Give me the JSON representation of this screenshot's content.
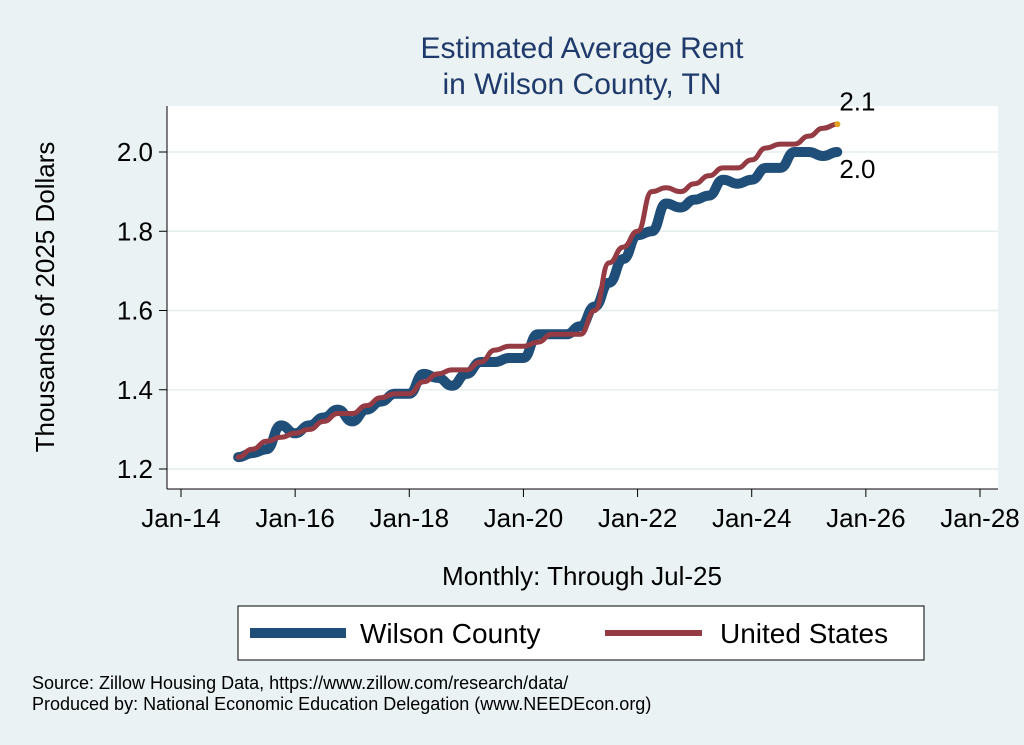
{
  "chart_data": {
    "type": "line",
    "title": [
      "Estimated Average Rent",
      "in Wilson County, TN"
    ],
    "xlabel": "Monthly: Through Jul-25",
    "ylabel": "Thousands of 2025 Dollars",
    "x_ticks": [
      "Jan-14",
      "Jan-16",
      "Jan-18",
      "Jan-20",
      "Jan-22",
      "Jan-24",
      "Jan-26",
      "Jan-28"
    ],
    "y_ticks": [
      "1.2",
      "1.4",
      "1.6",
      "1.8",
      "2.0"
    ],
    "xlim": [
      "2014-01",
      "2028-01"
    ],
    "ylim": [
      1.2,
      2.1
    ],
    "grid": true,
    "legend_position": "bottom",
    "series": [
      {
        "name": "Wilson County",
        "color": "#1f4e79",
        "end_label": "2.0",
        "points": [
          [
            "2015-01",
            1.23
          ],
          [
            "2015-04",
            1.24
          ],
          [
            "2015-07",
            1.25
          ],
          [
            "2015-10",
            1.31
          ],
          [
            "2016-01",
            1.29
          ],
          [
            "2016-04",
            1.31
          ],
          [
            "2016-07",
            1.33
          ],
          [
            "2016-10",
            1.35
          ],
          [
            "2017-01",
            1.32
          ],
          [
            "2017-04",
            1.35
          ],
          [
            "2017-07",
            1.37
          ],
          [
            "2017-10",
            1.39
          ],
          [
            "2018-01",
            1.39
          ],
          [
            "2018-04",
            1.44
          ],
          [
            "2018-07",
            1.43
          ],
          [
            "2018-10",
            1.41
          ],
          [
            "2019-01",
            1.44
          ],
          [
            "2019-04",
            1.47
          ],
          [
            "2019-07",
            1.47
          ],
          [
            "2019-10",
            1.48
          ],
          [
            "2020-01",
            1.48
          ],
          [
            "2020-04",
            1.54
          ],
          [
            "2020-07",
            1.54
          ],
          [
            "2020-10",
            1.54
          ],
          [
            "2021-01",
            1.56
          ],
          [
            "2021-04",
            1.61
          ],
          [
            "2021-07",
            1.67
          ],
          [
            "2021-10",
            1.73
          ],
          [
            "2022-01",
            1.79
          ],
          [
            "2022-04",
            1.8
          ],
          [
            "2022-07",
            1.87
          ],
          [
            "2022-10",
            1.86
          ],
          [
            "2023-01",
            1.88
          ],
          [
            "2023-04",
            1.89
          ],
          [
            "2023-07",
            1.93
          ],
          [
            "2023-10",
            1.92
          ],
          [
            "2024-01",
            1.93
          ],
          [
            "2024-04",
            1.96
          ],
          [
            "2024-07",
            1.96
          ],
          [
            "2024-10",
            2.0
          ],
          [
            "2025-01",
            2.0
          ],
          [
            "2025-04",
            1.99
          ],
          [
            "2025-07",
            2.0
          ]
        ]
      },
      {
        "name": "United States",
        "color": "#943b44",
        "end_label": "2.1",
        "points": [
          [
            "2015-01",
            1.23
          ],
          [
            "2015-04",
            1.25
          ],
          [
            "2015-07",
            1.27
          ],
          [
            "2015-10",
            1.28
          ],
          [
            "2016-01",
            1.29
          ],
          [
            "2016-04",
            1.3
          ],
          [
            "2016-07",
            1.32
          ],
          [
            "2016-10",
            1.34
          ],
          [
            "2017-01",
            1.34
          ],
          [
            "2017-04",
            1.36
          ],
          [
            "2017-07",
            1.38
          ],
          [
            "2017-10",
            1.39
          ],
          [
            "2018-01",
            1.39
          ],
          [
            "2018-04",
            1.42
          ],
          [
            "2018-07",
            1.44
          ],
          [
            "2018-10",
            1.45
          ],
          [
            "2019-01",
            1.45
          ],
          [
            "2019-04",
            1.47
          ],
          [
            "2019-07",
            1.5
          ],
          [
            "2019-10",
            1.51
          ],
          [
            "2020-01",
            1.51
          ],
          [
            "2020-04",
            1.52
          ],
          [
            "2020-07",
            1.54
          ],
          [
            "2020-10",
            1.54
          ],
          [
            "2021-01",
            1.54
          ],
          [
            "2021-04",
            1.6
          ],
          [
            "2021-07",
            1.72
          ],
          [
            "2021-10",
            1.76
          ],
          [
            "2022-01",
            1.8
          ],
          [
            "2022-04",
            1.9
          ],
          [
            "2022-07",
            1.91
          ],
          [
            "2022-10",
            1.9
          ],
          [
            "2023-01",
            1.92
          ],
          [
            "2023-04",
            1.94
          ],
          [
            "2023-07",
            1.96
          ],
          [
            "2023-10",
            1.96
          ],
          [
            "2024-01",
            1.98
          ],
          [
            "2024-04",
            2.01
          ],
          [
            "2024-07",
            2.02
          ],
          [
            "2024-10",
            2.02
          ],
          [
            "2025-01",
            2.04
          ],
          [
            "2025-04",
            2.06
          ],
          [
            "2025-07",
            2.07
          ]
        ]
      }
    ],
    "source_note": "Source: Zillow Housing Data, https://www.zillow.com/research/data/",
    "producer_note": "Produced by: National Economic Education Delegation (www.NEEDEcon.org)"
  }
}
